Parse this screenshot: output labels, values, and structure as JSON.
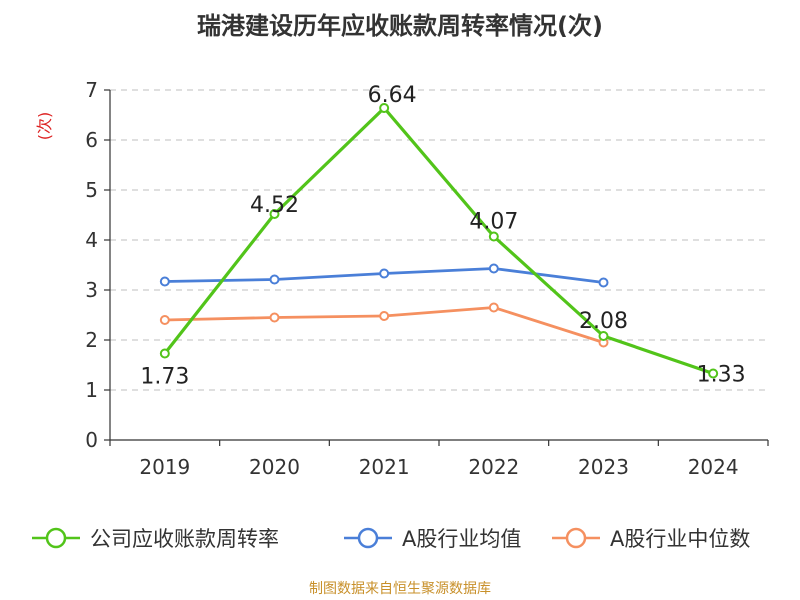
{
  "title": "瑞港建设历年应收账款周转率情况(次)",
  "source": "制图数据来自恒生聚源数据库",
  "chart_data": {
    "type": "line",
    "categories": [
      "2019",
      "2020",
      "2021",
      "2022",
      "2023",
      "2024"
    ],
    "ylabel": "(次)",
    "ylim": [
      0,
      7
    ],
    "yticks": [
      "0",
      "1",
      "2",
      "3",
      "4",
      "5",
      "6",
      "7"
    ],
    "grid": true,
    "legend_position": "bottom",
    "series": [
      {
        "name": "公司应收账款周转率",
        "color": "#52c41a",
        "values": [
          1.73,
          4.52,
          6.64,
          4.07,
          2.08,
          1.33
        ],
        "labels": [
          "1.73",
          "4.52",
          "6.64",
          "4.07",
          "2.08",
          "1.33"
        ]
      },
      {
        "name": "A股行业均值",
        "color": "#4a7fd8",
        "values": [
          3.17,
          3.21,
          3.33,
          3.43,
          3.15,
          null
        ]
      },
      {
        "name": "A股行业中位数",
        "color": "#f59060",
        "values": [
          2.4,
          2.45,
          2.48,
          2.65,
          1.95,
          null
        ]
      }
    ]
  }
}
